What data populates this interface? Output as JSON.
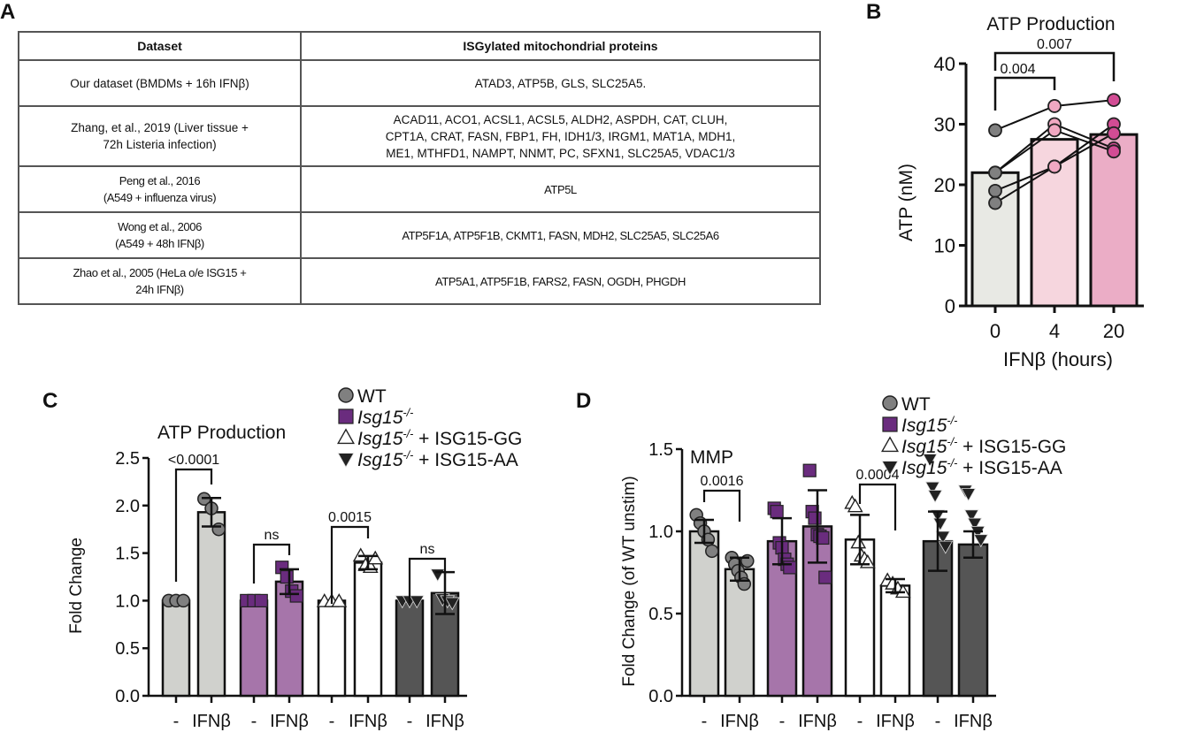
{
  "panels": {
    "A": {
      "letter": "A",
      "table": {
        "headers": [
          "Dataset",
          "ISGylated mitochondrial proteins"
        ],
        "rows": [
          {
            "dataset": [
              "Our dataset (BMDMs + 16h IFNβ)"
            ],
            "proteins": [
              "ATAD3, ATP5B, GLS, SLC25A5."
            ]
          },
          {
            "dataset": [
              "Zhang, et al., 2019 (Liver tissue +",
              "72h Listeria infection)"
            ],
            "proteins": [
              "ACAD11, ACO1, ACSL1, ACSL5, ALDH2, ASPDH, CAT, CLUH,",
              "CPT1A, CRAT, FASN, FBP1, FH, IDH1/3, IRGM1, MAT1A, MDH1,",
              "ME1, MTHFD1, NAMPT, NNMT, PC, SFXN1, SLC25A5, VDAC1/3"
            ]
          },
          {
            "dataset": [
              "Peng et al., 2016",
              "(A549 + influenza virus)"
            ],
            "proteins": [
              "ATP5L"
            ]
          },
          {
            "dataset": [
              "Wong et al., 2006",
              "(A549 + 48h IFNβ)"
            ],
            "proteins": [
              "ATP5F1A, ATP5F1B, CKMT1, FASN, MDH2, SLC25A5, SLC25A6"
            ]
          },
          {
            "dataset": [
              "Zhao et al., 2005 (HeLa o/e ISG15 +",
              "24h IFNβ)"
            ],
            "proteins": [
              "ATP5A1, ATP5F1B, FARS2, FASN, OGDH, PHGDH"
            ]
          }
        ]
      }
    },
    "B": {
      "letter": "B"
    },
    "C": {
      "letter": "C"
    },
    "D": {
      "letter": "D"
    }
  },
  "legend": {
    "items": [
      {
        "label": "WT",
        "italic_part": "",
        "suffix": "",
        "marker": "circle",
        "color": "#808080"
      },
      {
        "label": "",
        "italic_part": "Isg15",
        "sup": "-/-",
        "suffix": "",
        "marker": "square",
        "color": "#6a2c7e"
      },
      {
        "label": "",
        "italic_part": "Isg15",
        "sup": "-/-",
        "suffix": " + ISG15-GG",
        "marker": "triangle-up",
        "color": "#ffffff"
      },
      {
        "label": "",
        "italic_part": "Isg15",
        "sup": "-/-",
        "suffix": " + ISG15-AA",
        "marker": "triangle-down",
        "color": "#222222"
      }
    ]
  },
  "chart_data": [
    {
      "id": "B",
      "type": "bar",
      "title": "ATP Production",
      "xlabel": "IFNβ (hours)",
      "ylabel": "ATP (nM)",
      "ylim": [
        0,
        40
      ],
      "yticks": [
        0,
        10,
        20,
        30,
        40
      ],
      "categories": [
        "0",
        "4",
        "20"
      ],
      "values": [
        22,
        27.5,
        28.3
      ],
      "bar_colors": [
        "#e8e9e4",
        "#f6d6de",
        "#ebadc6"
      ],
      "point_colors": [
        "#808080",
        "#f0a8c2",
        "#d24c94"
      ],
      "paired_points": [
        [
          29,
          33,
          34
        ],
        [
          22,
          30,
          26
        ],
        [
          22,
          29,
          25.5
        ],
        [
          19,
          23,
          30
        ],
        [
          17,
          23,
          28.5
        ]
      ],
      "pairs_note": "lines connect matched replicates across 0, 4, 20 h",
      "annotations": [
        {
          "from": "0",
          "to": "4",
          "label": "0.004"
        },
        {
          "from": "0",
          "to": "20",
          "label": "0.007"
        }
      ]
    },
    {
      "id": "C",
      "type": "bar",
      "title": "ATP Production",
      "xlabel": "",
      "ylabel": "Fold Change",
      "ylim": [
        0,
        2.5
      ],
      "yticks": [
        "0.0",
        "0.5",
        "1.0",
        "1.5",
        "2.0",
        "2.5"
      ],
      "categories": [
        "-",
        "IFNβ",
        "-",
        "IFNβ",
        "-",
        "IFNβ",
        "-",
        "IFNβ"
      ],
      "groups": [
        "WT",
        "Isg15-/-",
        "Isg15-/- + ISG15-GG",
        "Isg15-/- + ISG15-AA"
      ],
      "values": [
        1.0,
        1.93,
        1.0,
        1.2,
        1.0,
        1.4,
        1.0,
        1.08
      ],
      "errors": [
        0,
        0.15,
        0,
        0.13,
        0,
        0.07,
        0,
        0.22
      ],
      "bar_colors": [
        "#d0d1cd",
        "#d0d1cd",
        "#a675aa",
        "#a675aa",
        "#ffffff",
        "#ffffff",
        "#555555",
        "#555555"
      ],
      "points": [
        [
          1.0,
          1.0,
          1.0
        ],
        [
          2.07,
          1.97,
          1.75
        ],
        [
          1.0,
          1.0,
          1.0
        ],
        [
          1.35,
          1.25,
          1.1,
          1.05
        ],
        [
          0.99,
          0.99,
          0.99
        ],
        [
          1.47,
          1.37,
          1.35,
          1.44
        ],
        [
          1.0,
          1.0,
          1.0
        ],
        [
          1.28,
          1.02,
          1.0,
          0.98
        ]
      ],
      "annotations": [
        {
          "from": 0,
          "to": 1,
          "label": "<0.0001"
        },
        {
          "from": 2,
          "to": 3,
          "label": "ns"
        },
        {
          "from": 4,
          "to": 5,
          "label": "0.0015"
        },
        {
          "from": 6,
          "to": 7,
          "label": "ns"
        }
      ]
    },
    {
      "id": "D",
      "type": "bar",
      "title": "MMP",
      "xlabel": "",
      "ylabel": "Fold Change (of WT unstim)",
      "ylim": [
        0,
        1.5
      ],
      "yticks": [
        "0.0",
        "0.5",
        "1.0",
        "1.5"
      ],
      "categories": [
        "-",
        "IFNβ",
        "-",
        "IFNβ",
        "-",
        "IFNβ",
        "-",
        "IFNβ"
      ],
      "groups": [
        "WT",
        "Isg15-/-",
        "Isg15-/- + ISG15-GG",
        "Isg15-/- + ISG15-AA"
      ],
      "values": [
        1.0,
        0.77,
        0.94,
        1.03,
        0.95,
        0.67,
        0.94,
        0.92
      ],
      "errors": [
        0.07,
        0.07,
        0.14,
        0.22,
        0.15,
        0.04,
        0.18,
        0.08
      ],
      "bar_colors": [
        "#d0d1cd",
        "#d0d1cd",
        "#a675aa",
        "#a675aa",
        "#ffffff",
        "#ffffff",
        "#555555",
        "#555555"
      ],
      "points": [
        [
          1.1,
          1.05,
          1.0,
          0.95,
          0.88
        ],
        [
          0.84,
          0.8,
          0.76,
          0.72,
          0.68,
          0.82
        ],
        [
          1.14,
          1.12,
          0.93,
          0.9,
          0.83,
          0.8,
          0.78
        ],
        [
          1.37,
          1.12,
          1.08,
          0.98,
          0.97,
          0.96,
          0.72
        ],
        [
          1.17,
          1.15,
          0.93,
          0.85,
          0.83,
          0.81
        ],
        [
          0.7,
          0.68,
          0.65,
          0.63
        ],
        [
          1.44,
          1.27,
          1.22,
          1.1,
          1.05,
          0.97,
          0.91
        ],
        [
          1.25,
          1.23,
          1.1,
          1.05,
          1.0,
          0.95
        ]
      ],
      "annotations": [
        {
          "from": 0,
          "to": 1,
          "label": "0.0016"
        },
        {
          "from": 4,
          "to": 5,
          "label": "0.0004"
        }
      ]
    }
  ]
}
